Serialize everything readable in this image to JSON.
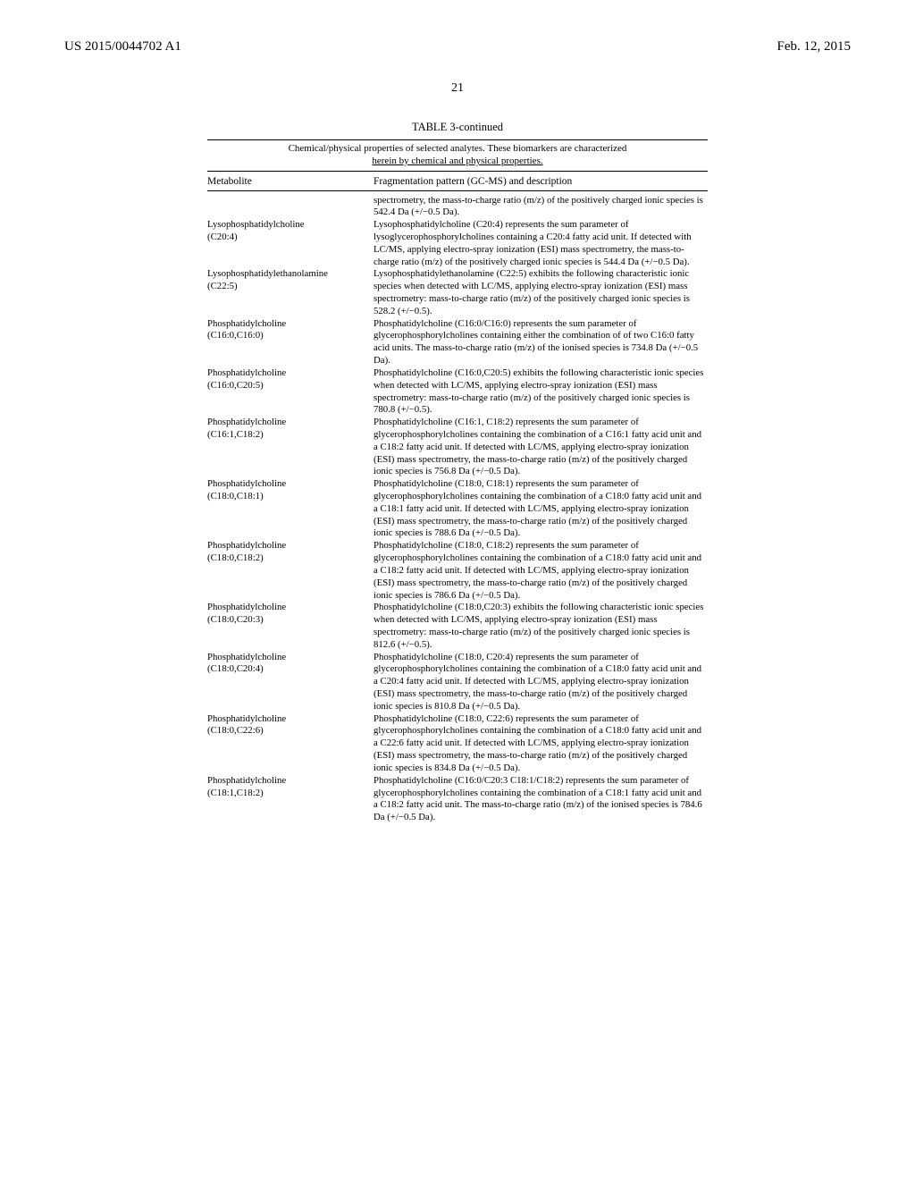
{
  "header": {
    "left": "US 2015/0044702 A1",
    "right": "Feb. 12, 2015"
  },
  "page_number": "21",
  "table": {
    "title": "TABLE 3-continued",
    "caption_line1": "Chemical/physical properties of selected analytes. These biomarkers are characterized",
    "caption_line2": "herein by chemical and physical properties.",
    "col1": "Metabolite",
    "col2": "Fragmentation pattern (GC-MS) and description",
    "rows": [
      {
        "metabolite": "",
        "metabolite_sub": "",
        "desc": "spectrometry, the mass-to-charge ratio (m/z) of the positively charged ionic species is 542.4 Da (+/−0.5 Da)."
      },
      {
        "metabolite": "Lysophosphatidylcholine",
        "metabolite_sub": "(C20:4)",
        "desc": "Lysophosphatidylcholine (C20:4) represents the sum parameter of lysoglycerophosphorylcholines containing a C20:4 fatty acid unit. If detected with LC/MS, applying electro-spray ionization (ESI) mass spectrometry, the mass-to-charge ratio (m/z) of the positively charged ionic species is 544.4 Da (+/−0.5 Da)."
      },
      {
        "metabolite": "Lysophosphatidylethanolamine",
        "metabolite_sub": "(C22:5)",
        "desc": "Lysophosphatidylethanolamine (C22:5) exhibits the following characteristic ionic species when detected with LC/MS, applying electro-spray ionization (ESI) mass spectrometry: mass-to-charge ratio (m/z) of the positively charged ionic species is 528.2 (+/−0.5)."
      },
      {
        "metabolite": "Phosphatidylcholine",
        "metabolite_sub": "(C16:0,C16:0)",
        "desc": "Phosphatidylcholine (C16:0/C16:0) represents the sum parameter of glycerophosphorylcholines containing either the combination of of two C16:0 fatty acid units. The mass-to-charge ratio (m/z) of the ionised species is 734.8 Da (+/−0.5 Da)."
      },
      {
        "metabolite": "Phosphatidylcholine",
        "metabolite_sub": "(C16:0,C20:5)",
        "desc": "Phosphatidylcholine (C16:0,C20:5) exhibits the following characteristic ionic species when detected with LC/MS, applying electro-spray ionization (ESI) mass spectrometry: mass-to-charge ratio (m/z) of the positively charged ionic species is 780.8 (+/−0.5)."
      },
      {
        "metabolite": "Phosphatidylcholine",
        "metabolite_sub": "(C16:1,C18:2)",
        "desc": "Phosphatidylcholine (C16:1, C18:2) represents the sum parameter of glycerophosphorylcholines containing the combination of a C16:1 fatty acid unit and a C18:2 fatty acid unit. If detected with LC/MS, applying electro-spray ionization (ESI) mass spectrometry, the mass-to-charge ratio (m/z) of the positively charged ionic species is 756.8 Da (+/−0.5 Da)."
      },
      {
        "metabolite": "Phosphatidylcholine",
        "metabolite_sub": "(C18:0,C18:1)",
        "desc": "Phosphatidylcholine (C18:0, C18:1) represents the sum parameter of glycerophosphorylcholines containing the combination of a C18:0 fatty acid unit and a C18:1 fatty acid unit. If detected with LC/MS, applying electro-spray ionization (ESI) mass spectrometry, the mass-to-charge ratio (m/z) of the positively charged ionic species is 788.6 Da (+/−0.5 Da)."
      },
      {
        "metabolite": "Phosphatidylcholine",
        "metabolite_sub": "(C18:0,C18:2)",
        "desc": "Phosphatidylcholine (C18:0, C18:2) represents the sum parameter of glycerophosphorylcholines containing the combination of a C18:0 fatty acid unit and a C18:2 fatty acid unit. If detected with LC/MS, applying electro-spray ionization (ESI) mass spectrometry, the mass-to-charge ratio (m/z) of the positively charged ionic species is 786.6 Da (+/−0.5 Da)."
      },
      {
        "metabolite": "Phosphatidylcholine",
        "metabolite_sub": "(C18:0,C20:3)",
        "desc": "Phosphatidylcholine (C18:0,C20:3) exhibits the following characteristic ionic species when detected with LC/MS, applying electro-spray ionization (ESI) mass spectrometry: mass-to-charge ratio (m/z) of the positively charged ionic species is 812.6 (+/−0.5)."
      },
      {
        "metabolite": "Phosphatidylcholine",
        "metabolite_sub": "(C18:0,C20:4)",
        "desc": "Phosphatidylcholine (C18:0, C20:4) represents the sum parameter of glycerophosphorylcholines containing the combination of a C18:0 fatty acid unit and a C20:4 fatty acid unit. If detected with LC/MS, applying electro-spray ionization (ESI) mass spectrometry, the mass-to-charge ratio (m/z) of the positively charged ionic species is 810.8 Da (+/−0.5 Da)."
      },
      {
        "metabolite": "Phosphatidylcholine",
        "metabolite_sub": "(C18:0,C22:6)",
        "desc": "Phosphatidylcholine (C18:0, C22:6) represents the sum parameter of glycerophosphorylcholines containing the combination of a C18:0 fatty acid unit and a C22:6 fatty acid unit. If detected with LC/MS, applying electro-spray ionization (ESI) mass spectrometry, the mass-to-charge ratio (m/z) of the positively charged ionic species is 834.8 Da (+/−0.5 Da)."
      },
      {
        "metabolite": "Phosphatidylcholine",
        "metabolite_sub": "(C18:1,C18:2)",
        "desc": "Phosphatidylcholine (C16:0/C20:3 C18:1/C18:2) represents the sum parameter of glycerophosphorylcholines containing the combination of a C18:1 fatty acid unit and a C18:2 fatty acid unit. The mass-to-charge ratio (m/z) of the ionised species is 784.6 Da (+/−0.5 Da)."
      }
    ]
  }
}
